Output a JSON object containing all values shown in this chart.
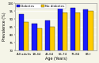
{
  "categories": [
    "All adults",
    "18-44",
    "45-64",
    "65-74",
    "75-84",
    "85+"
  ],
  "diabetes": [
    93,
    87,
    89,
    97,
    97,
    96
  ],
  "no_diabetes": [
    88,
    84,
    85,
    94,
    94,
    95
  ],
  "bar_color_diabetes": "#1a1aff",
  "bar_color_no_diabetes": "#ffcc00",
  "ylabel": "Prevalence (%)",
  "xlabel": "Age (Years)",
  "legend_diabetes": "Diabetes",
  "legend_no_diabetes": "No diabetes",
  "ylim": [
    70,
    100
  ],
  "yticks": [
    70,
    75,
    80,
    85,
    90,
    95,
    100
  ],
  "bar_width": 0.38,
  "background_color": "#f5f5e8",
  "plot_bg_color": "#f5f5e8",
  "grid_color": "#ffffff",
  "label_fontsize": 3.5,
  "tick_fontsize": 2.8,
  "legend_fontsize": 3.0
}
